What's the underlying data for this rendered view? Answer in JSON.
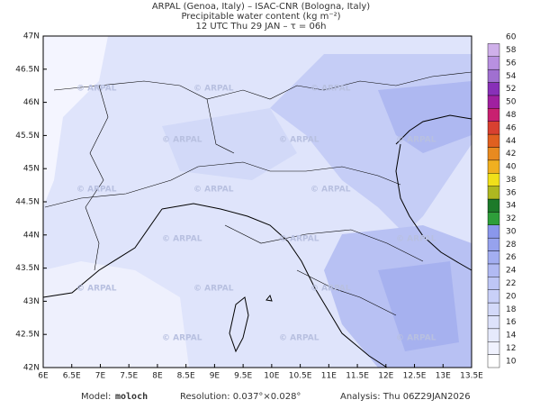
{
  "header": {
    "line1": "ARPAL (Genoa, Italy)  –  ISAC-CNR (Bologna, Italy)",
    "line2": "Precipitable water content (kg m⁻²)",
    "line3": "12 UTC Thu 29 JAN  –  τ = 06h"
  },
  "map": {
    "lat_labels": [
      "42N",
      "42.5N",
      "43N",
      "43.5N",
      "44N",
      "44.5N",
      "45N",
      "45.5N",
      "46N",
      "46.5N",
      "47N"
    ],
    "lon_labels": [
      "6E",
      "6.5E",
      "7E",
      "7.5E",
      "8E",
      "8.5E",
      "9E",
      "9.5E",
      "10E",
      "10.5E",
      "11E",
      "11.5E",
      "12E",
      "12.5E",
      "13E",
      "13.5E"
    ],
    "watermark": "© ARPAL"
  },
  "colorbar": {
    "labels": [
      10,
      12,
      14,
      16,
      18,
      20,
      22,
      24,
      26,
      28,
      30,
      32,
      34,
      36,
      38,
      40,
      42,
      44,
      46,
      48,
      50,
      52,
      54,
      56,
      58,
      60
    ]
  },
  "footer": {
    "model_label": "Model:",
    "model": "moloch",
    "resolution": "Resolution: 0.037°×0.028°",
    "analysis": "Analysis: Thu 06Z29JAN2026"
  }
}
